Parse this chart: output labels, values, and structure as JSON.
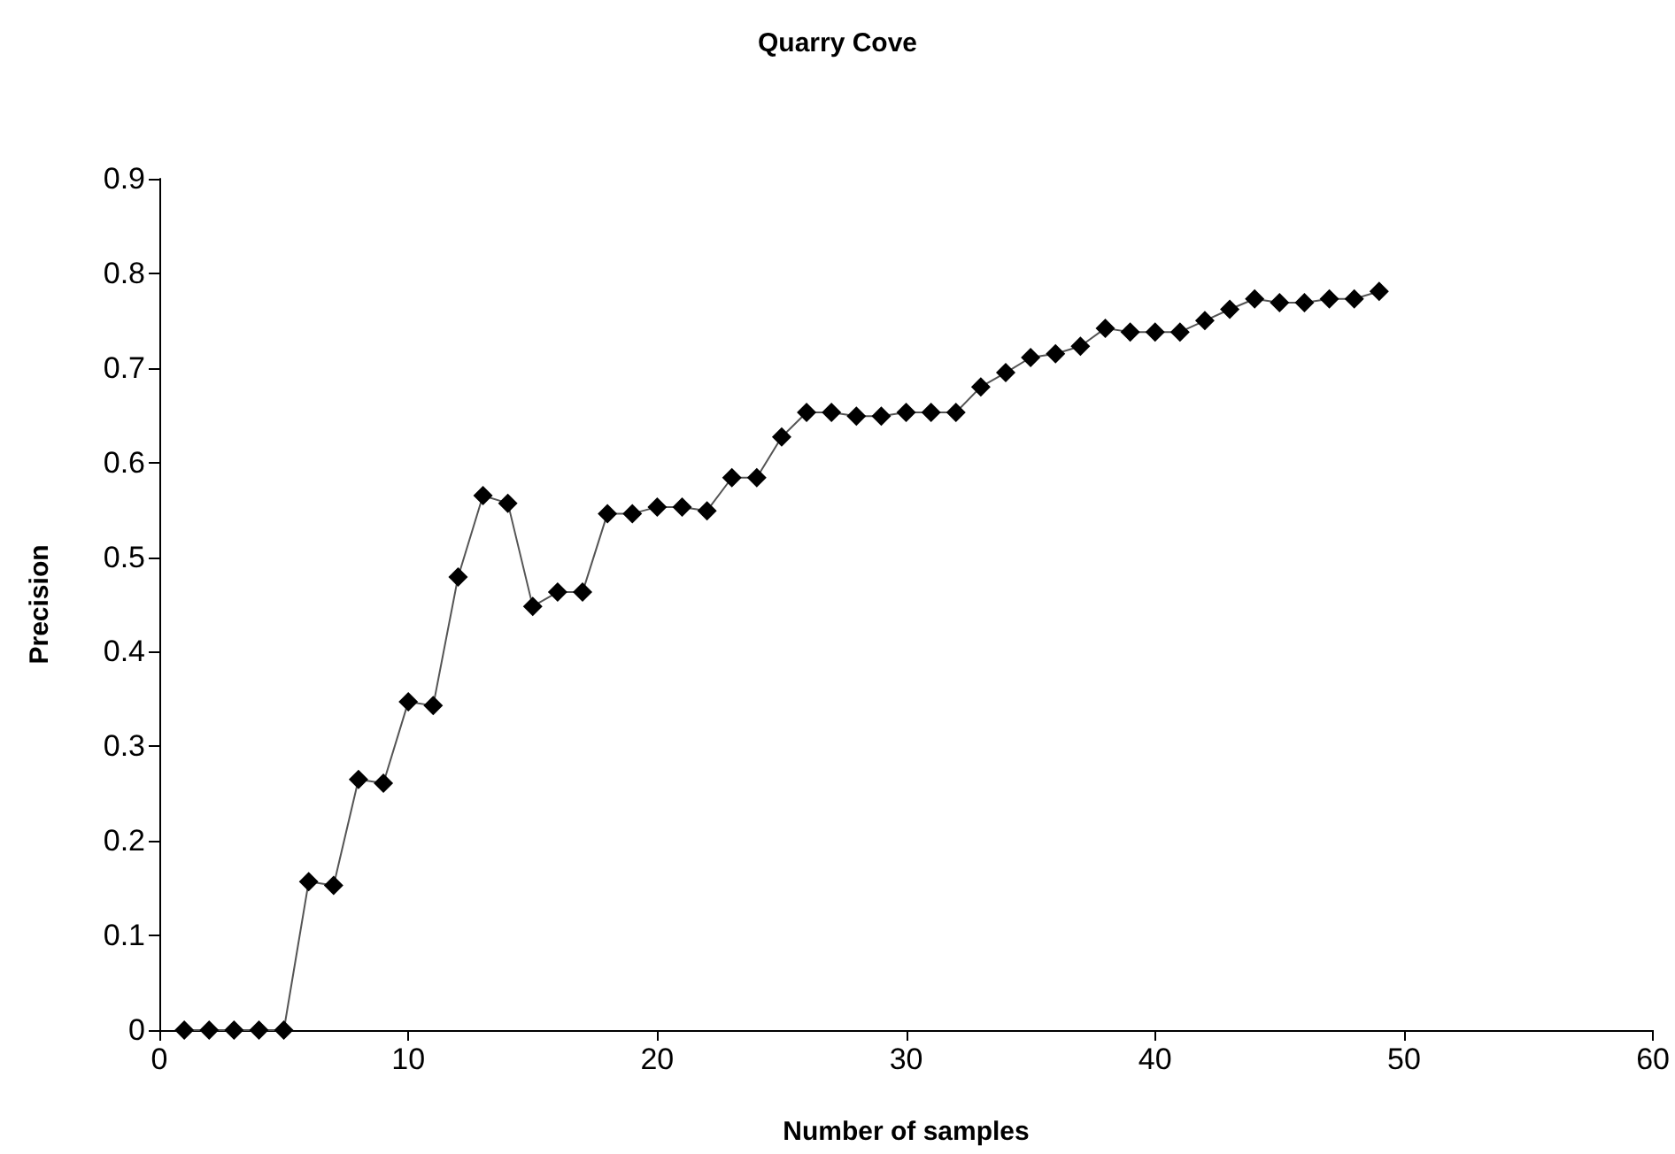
{
  "chart_data": {
    "type": "line",
    "title": "Quarry Cove",
    "xlabel": "Number of samples",
    "ylabel": "Precision",
    "x": [
      1,
      2,
      3,
      4,
      5,
      6,
      7,
      8,
      9,
      10,
      11,
      12,
      13,
      14,
      15,
      16,
      17,
      18,
      19,
      20,
      21,
      22,
      23,
      24,
      25,
      26,
      27,
      28,
      29,
      30,
      31,
      32,
      33,
      34,
      35,
      36,
      37,
      38,
      39,
      40,
      41,
      42,
      43,
      44,
      45,
      46,
      47,
      48,
      49
    ],
    "series": [
      {
        "color": "#000000",
        "values": [
          0,
          0,
          0,
          0,
          0,
          0.157,
          0.153,
          0.265,
          0.261,
          0.347,
          0.343,
          0.479,
          0.565,
          0.557,
          0.448,
          0.463,
          0.463,
          0.546,
          0.546,
          0.553,
          0.553,
          0.549,
          0.584,
          0.584,
          0.627,
          0.653,
          0.653,
          0.649,
          0.649,
          0.653,
          0.653,
          0.653,
          0.68,
          0.695,
          0.711,
          0.715,
          0.723,
          0.742,
          0.738,
          0.738,
          0.738,
          0.75,
          0.762,
          0.773,
          0.769,
          0.769,
          0.773,
          0.773,
          0.781
        ]
      }
    ],
    "xlim": [
      0,
      60
    ],
    "xticks": [
      0,
      10,
      20,
      30,
      40,
      50,
      60
    ],
    "ylim": [
      0,
      0.9
    ],
    "yticks": [
      0,
      0.1,
      0.2,
      0.3,
      0.4,
      0.5,
      0.6,
      0.7,
      0.8,
      0.9
    ],
    "grid": false,
    "marker": "diamond",
    "line_style": "solid"
  }
}
